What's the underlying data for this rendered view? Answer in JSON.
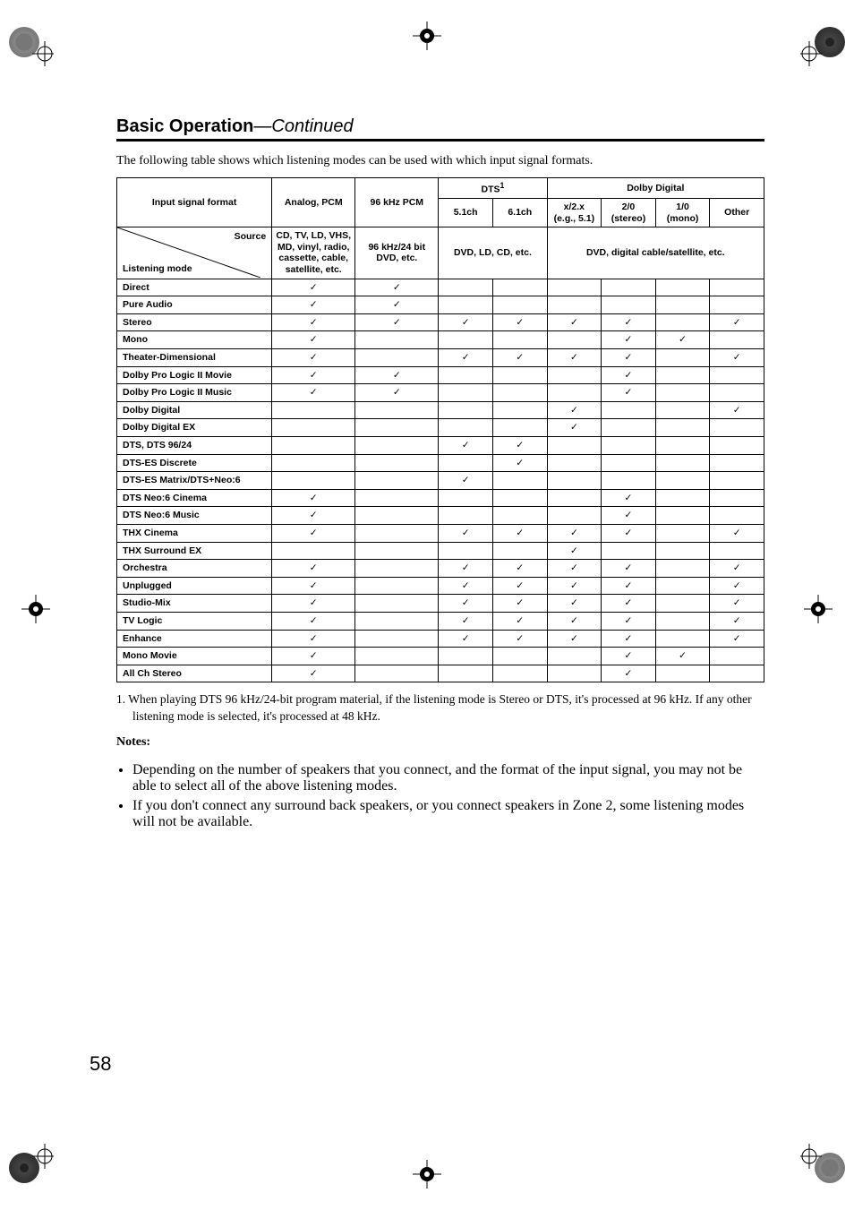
{
  "heading": {
    "bold": "Basic Operation",
    "dash": "—",
    "ital": "Continued"
  },
  "intro": "The following table shows which listening modes can be used with which input signal formats.",
  "table": {
    "check_glyph": "✓",
    "hdr": {
      "input_format": "Input signal format",
      "analog": "Analog, PCM",
      "pcm96": "96 kHz PCM",
      "dts": "DTS",
      "dts_sup": "1",
      "dolby": "Dolby Digital",
      "c51": "5.1ch",
      "c61": "6.1ch",
      "x2x": "x/2.x\n(e.g., 5.1)",
      "s20": "2/0\n(stereo)",
      "m10": "1/0\n(mono)",
      "other": "Other",
      "source": "Source",
      "listening_mode": "Listening mode",
      "analog_src": "CD, TV, LD, VHS, MD, vinyl, radio, cassette, cable, satellite, etc.",
      "pcm96_src": "96 kHz/24 bit DVD, etc.",
      "dts_src": "DVD, LD, CD, etc.",
      "dolby_src": "DVD, digital cable/satellite, etc."
    },
    "rows": [
      {
        "mode": "Direct",
        "c": [
          1,
          1,
          0,
          0,
          0,
          0,
          0,
          0
        ]
      },
      {
        "mode": "Pure Audio",
        "c": [
          1,
          1,
          0,
          0,
          0,
          0,
          0,
          0
        ]
      },
      {
        "mode": "Stereo",
        "c": [
          1,
          1,
          1,
          1,
          1,
          1,
          0,
          1
        ]
      },
      {
        "mode": "Mono",
        "c": [
          1,
          0,
          0,
          0,
          0,
          1,
          1,
          0
        ]
      },
      {
        "mode": "Theater-Dimensional",
        "c": [
          1,
          0,
          1,
          1,
          1,
          1,
          0,
          1
        ]
      },
      {
        "mode": "Dolby Pro Logic II Movie",
        "c": [
          1,
          1,
          0,
          0,
          0,
          1,
          0,
          0
        ]
      },
      {
        "mode": "Dolby Pro Logic II Music",
        "c": [
          1,
          1,
          0,
          0,
          0,
          1,
          0,
          0
        ]
      },
      {
        "mode": "Dolby Digital",
        "c": [
          0,
          0,
          0,
          0,
          1,
          0,
          0,
          1
        ]
      },
      {
        "mode": "Dolby Digital EX",
        "c": [
          0,
          0,
          0,
          0,
          1,
          0,
          0,
          0
        ]
      },
      {
        "mode": "DTS, DTS 96/24",
        "c": [
          0,
          0,
          1,
          1,
          0,
          0,
          0,
          0
        ]
      },
      {
        "mode": "DTS-ES Discrete",
        "c": [
          0,
          0,
          0,
          1,
          0,
          0,
          0,
          0
        ]
      },
      {
        "mode": "DTS-ES Matrix/DTS+Neo:6",
        "c": [
          0,
          0,
          1,
          0,
          0,
          0,
          0,
          0
        ]
      },
      {
        "mode": "DTS Neo:6 Cinema",
        "c": [
          1,
          0,
          0,
          0,
          0,
          1,
          0,
          0
        ]
      },
      {
        "mode": "DTS Neo:6 Music",
        "c": [
          1,
          0,
          0,
          0,
          0,
          1,
          0,
          0
        ]
      },
      {
        "mode": "THX Cinema",
        "c": [
          1,
          0,
          1,
          1,
          1,
          1,
          0,
          1
        ]
      },
      {
        "mode": "THX Surround EX",
        "c": [
          0,
          0,
          0,
          0,
          1,
          0,
          0,
          0
        ]
      },
      {
        "mode": "Orchestra",
        "c": [
          1,
          0,
          1,
          1,
          1,
          1,
          0,
          1
        ]
      },
      {
        "mode": "Unplugged",
        "c": [
          1,
          0,
          1,
          1,
          1,
          1,
          0,
          1
        ]
      },
      {
        "mode": "Studio-Mix",
        "c": [
          1,
          0,
          1,
          1,
          1,
          1,
          0,
          1
        ]
      },
      {
        "mode": "TV Logic",
        "c": [
          1,
          0,
          1,
          1,
          1,
          1,
          0,
          1
        ]
      },
      {
        "mode": "Enhance",
        "c": [
          1,
          0,
          1,
          1,
          1,
          1,
          0,
          1
        ]
      },
      {
        "mode": "Mono Movie",
        "c": [
          1,
          0,
          0,
          0,
          0,
          1,
          1,
          0
        ]
      },
      {
        "mode": "All Ch Stereo",
        "c": [
          1,
          0,
          0,
          0,
          0,
          1,
          0,
          0
        ]
      }
    ]
  },
  "footnote": "1. When playing DTS 96 kHz/24-bit program material, if the listening mode is Stereo or DTS, it's processed at 96 kHz. If any other listening mode is selected, it's processed at 48 kHz.",
  "notes_hdr": "Notes:",
  "bullets": [
    "Depending on the number of speakers that you connect, and the format of the input signal, you may not be able to select all of the above listening modes.",
    "If you don't connect any surround back speakers, or you connect speakers in Zone 2, some listening modes will not be available."
  ],
  "page_number": "58"
}
